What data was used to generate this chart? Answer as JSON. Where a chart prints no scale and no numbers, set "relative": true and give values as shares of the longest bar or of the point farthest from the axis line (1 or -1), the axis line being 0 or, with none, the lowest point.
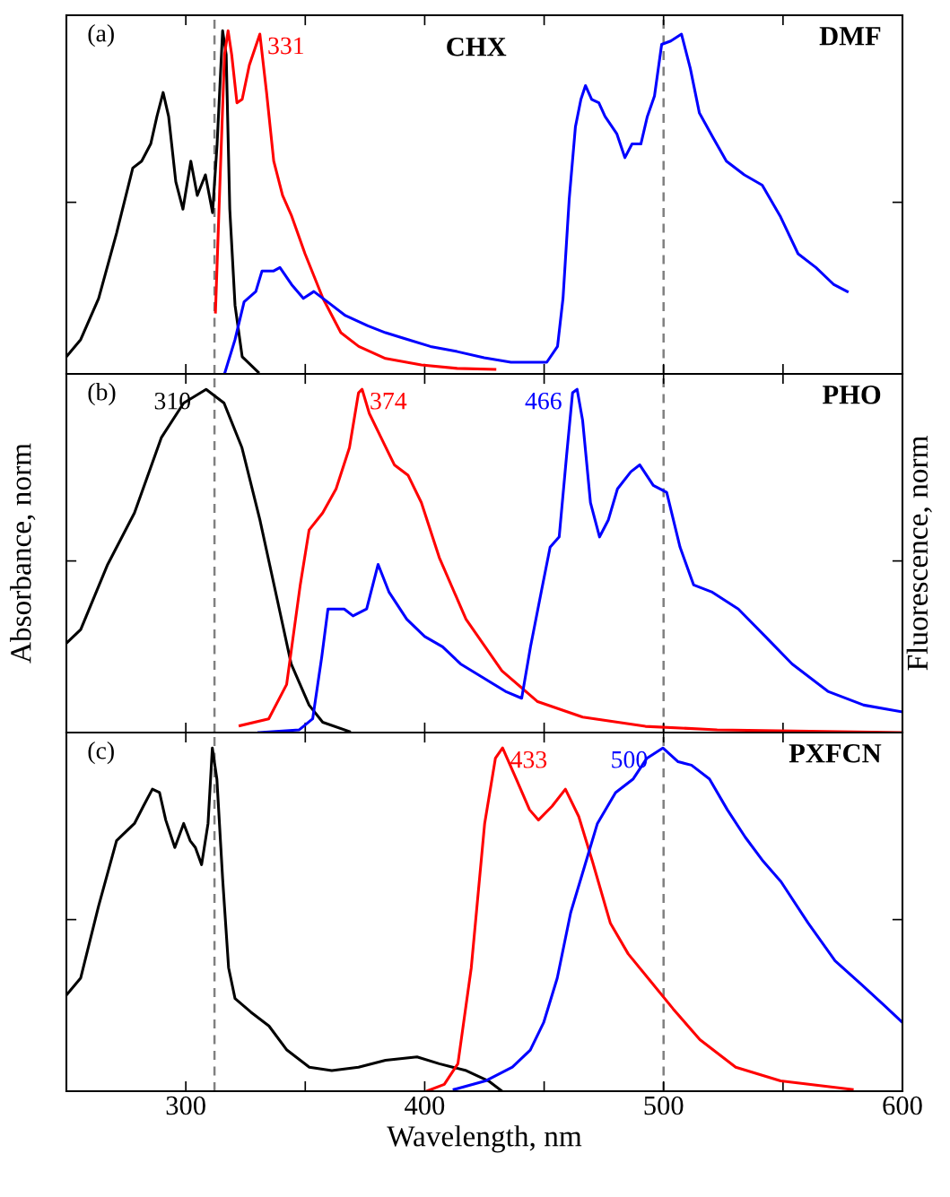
{
  "chart_data": [
    {
      "type": "line",
      "relative": true,
      "xlim": [
        250,
        600
      ],
      "xticks": [
        300,
        {
          "value": 350,
          "label": null
        },
        400,
        {
          "value": 450,
          "label": null
        },
        500,
        {
          "value": 550,
          "label": null
        },
        600
      ],
      "tick_labels": false,
      "grid": false,
      "marker": "none",
      "line_style": "solid",
      "annotations": [
        "(a)",
        "CHX",
        "DMF",
        {
          "text": "331",
          "x": 331,
          "y": 0.99
        }
      ],
      "ref_lines": [
        {
          "axis": "x",
          "value": 312,
          "color": "#808080",
          "line_style": "dashed"
        },
        {
          "axis": "x",
          "value": 500,
          "color": "#808080",
          "line_style": "dashed"
        }
      ],
      "series": [
        {
          "color": "#000000",
          "x": [
            250,
            256,
            263.5,
            271,
            277.8,
            281.5,
            285.3,
            287.9,
            290.5,
            292.8,
            295.8,
            298.8,
            302.1,
            304.8,
            308.2,
            311.2,
            313.1,
            315.4,
            316.9,
            318.4,
            320.6,
            323.6,
            330.3
          ],
          "values": [
            0.05,
            0.1,
            0.22,
            0.41,
            0.6,
            0.62,
            0.67,
            0.75,
            0.82,
            0.75,
            0.56,
            0.48,
            0.62,
            0.52,
            0.58,
            0.47,
            0.67,
            1.0,
            0.93,
            0.48,
            0.2,
            0.05,
            0.005
          ]
        },
        {
          "color": "#ff0000",
          "x": [
            312.4,
            314.3,
            316.2,
            317.7,
            319.2,
            321.4,
            323.6,
            326.6,
            331,
            333.8,
            336.8,
            340.5,
            344.3,
            349.9,
            357.4,
            364.9,
            372.4,
            383.6,
            398.6,
            413.6,
            429.4
          ],
          "values": [
            0.18,
            0.56,
            0.93,
            1.0,
            0.93,
            0.79,
            0.8,
            0.9,
            0.99,
            0.82,
            0.62,
            0.52,
            0.46,
            0.35,
            0.22,
            0.12,
            0.08,
            0.045,
            0.026,
            0.016,
            0.013
          ]
        },
        {
          "color": "#0000ff",
          "x": [
            316.2,
            320.6,
            324.4,
            329.3,
            331.9,
            336.8,
            339.4,
            344.3,
            349.2,
            353.6,
            359.3,
            366.8,
            376.2,
            383.6,
            393,
            402.4,
            413.6,
            424.9,
            436.1,
            451.1,
            455.6,
            457.9,
            460.5,
            463.1,
            465.4,
            467.3,
            469.9,
            472.9,
            475.5,
            480.4,
            483.8,
            486.8,
            490.5,
            493.2,
            496.2,
            499.2,
            503,
            507.5,
            511.2,
            515,
            520.6,
            526.3,
            533.8,
            541.3,
            548.8,
            556.3,
            563.8,
            571.3,
            576.9
          ],
          "values": [
            0,
            0.1,
            0.21,
            0.24,
            0.3,
            0.3,
            0.31,
            0.26,
            0.22,
            0.24,
            0.21,
            0.17,
            0.14,
            0.12,
            0.1,
            0.08,
            0.065,
            0.047,
            0.034,
            0.034,
            0.08,
            0.22,
            0.51,
            0.72,
            0.8,
            0.84,
            0.8,
            0.79,
            0.75,
            0.7,
            0.63,
            0.67,
            0.67,
            0.75,
            0.81,
            0.96,
            0.97,
            0.99,
            0.89,
            0.76,
            0.69,
            0.62,
            0.58,
            0.55,
            0.46,
            0.35,
            0.31,
            0.26,
            0.24
          ]
        }
      ]
    },
    {
      "type": "line",
      "relative": true,
      "xlim": [
        250,
        600
      ],
      "xticks": [
        300,
        {
          "value": 350,
          "label": null
        },
        400,
        {
          "value": 450,
          "label": null
        },
        500,
        {
          "value": 550,
          "label": null
        },
        600
      ],
      "tick_labels": false,
      "grid": false,
      "marker": "none",
      "line_style": "solid",
      "ylabel": "Absorbance, norm",
      "y2label": "Fluorescence, norm",
      "annotations": [
        "(b)",
        "PHO",
        {
          "text": "310",
          "x": 308.5,
          "y": 1.0
        },
        {
          "text": "374",
          "x": 373.8,
          "y": 1.0
        },
        {
          "text": "466",
          "x": 463.8,
          "y": 1.0
        }
      ],
      "ref_lines": [
        {
          "axis": "x",
          "value": 312,
          "color": "#808080",
          "line_style": "dashed"
        },
        {
          "axis": "x",
          "value": 500,
          "color": "#808080",
          "line_style": "dashed"
        }
      ],
      "series": [
        {
          "color": "#000000",
          "x": [
            250,
            256,
            267.3,
            278.5,
            289.8,
            299.1,
            308.5,
            316,
            323.5,
            331,
            338.5,
            344.1,
            351.6,
            357.3,
            368.5
          ],
          "values": [
            0.26,
            0.3,
            0.49,
            0.64,
            0.86,
            0.96,
            1.0,
            0.96,
            0.83,
            0.62,
            0.38,
            0.2,
            0.08,
            0.03,
            0.003
          ]
        },
        {
          "color": "#ff0000",
          "x": [
            322.7,
            334.7,
            342.2,
            347.9,
            351.6,
            357.3,
            362.9,
            368.5,
            372.3,
            373.8,
            376.8,
            381.7,
            387.3,
            393,
            398.6,
            406.1,
            417.3,
            432.3,
            447.3,
            466.1,
            492.4,
            522.4,
            600
          ],
          "values": [
            0.02,
            0.04,
            0.14,
            0.43,
            0.59,
            0.64,
            0.71,
            0.83,
            0.99,
            1.0,
            0.93,
            0.86,
            0.78,
            0.75,
            0.67,
            0.51,
            0.33,
            0.18,
            0.09,
            0.045,
            0.018,
            0.008,
            0
          ]
        },
        {
          "color": "#0000ff",
          "x": [
            330.6,
            347.5,
            353.1,
            356.9,
            359.5,
            366.3,
            370,
            375.7,
            380.5,
            385,
            392.5,
            400,
            407.5,
            415,
            424.4,
            433.8,
            440.6,
            444.3,
            448.8,
            452.5,
            456.3,
            459.3,
            461.9,
            463.8,
            466.1,
            469.4,
            473.2,
            476.9,
            480.7,
            486.3,
            490,
            495.7,
            501.3,
            506.9,
            512.6,
            520.1,
            531.3,
            542.6,
            553.8,
            568.8,
            583.8,
            600
          ],
          "values": [
            0,
            0.008,
            0.04,
            0.22,
            0.36,
            0.36,
            0.34,
            0.36,
            0.49,
            0.41,
            0.33,
            0.28,
            0.25,
            0.2,
            0.16,
            0.12,
            0.1,
            0.25,
            0.41,
            0.54,
            0.57,
            0.8,
            0.99,
            1.0,
            0.91,
            0.67,
            0.57,
            0.62,
            0.71,
            0.76,
            0.78,
            0.72,
            0.7,
            0.54,
            0.43,
            0.41,
            0.36,
            0.28,
            0.2,
            0.12,
            0.08,
            0.06
          ]
        }
      ]
    },
    {
      "type": "line",
      "relative": true,
      "xlim": [
        250,
        600
      ],
      "xticks": [
        300,
        {
          "value": 350,
          "label": null
        },
        400,
        {
          "value": 450,
          "label": null
        },
        500,
        {
          "value": 550,
          "label": null
        },
        600
      ],
      "tick_labels": "x",
      "grid": false,
      "marker": "none",
      "line_style": "solid",
      "xlabel": "Wavelength, nm",
      "annotations": [
        "(c)",
        "PXFCN",
        {
          "text": "433",
          "x": 432.6,
          "y": 1.0
        },
        {
          "text": "500",
          "x": 499.7,
          "y": 1.0
        }
      ],
      "ref_lines": [
        {
          "axis": "x",
          "value": 312,
          "color": "#808080",
          "line_style": "dashed"
        },
        {
          "axis": "x",
          "value": 500,
          "color": "#808080",
          "line_style": "dashed"
        }
      ],
      "series": [
        {
          "color": "#000000",
          "x": [
            250,
            256,
            263.5,
            271,
            274,
            278.5,
            282.2,
            286,
            289,
            291.6,
            295.4,
            299.1,
            301.8,
            304,
            306.6,
            309.3,
            311.1,
            313,
            315.4,
            317.9,
            320.6,
            327.3,
            334.8,
            342.3,
            351.7,
            361.1,
            372.3,
            383.6,
            396.8,
            406.1,
            417.4,
            426.7,
            432.4
          ],
          "values": [
            0.28,
            0.33,
            0.54,
            0.73,
            0.75,
            0.78,
            0.83,
            0.88,
            0.87,
            0.79,
            0.71,
            0.78,
            0.73,
            0.71,
            0.66,
            0.78,
            1.0,
            0.91,
            0.62,
            0.36,
            0.27,
            0.23,
            0.19,
            0.12,
            0.07,
            0.06,
            0.07,
            0.09,
            0.1,
            0.08,
            0.06,
            0.03,
            0
          ]
        },
        {
          "color": "#ff0000",
          "x": [
            400.8,
            408.2,
            413.9,
            419.5,
            425.1,
            429.6,
            432.6,
            438.3,
            443.9,
            447.6,
            453.3,
            458.9,
            464.5,
            470.2,
            477.7,
            485.2,
            494.6,
            504,
            515.2,
            530.2,
            549,
            579
          ],
          "values": [
            0,
            0.02,
            0.08,
            0.36,
            0.78,
            0.97,
            1.0,
            0.91,
            0.82,
            0.79,
            0.83,
            0.88,
            0.8,
            0.67,
            0.49,
            0.4,
            0.32,
            0.24,
            0.15,
            0.07,
            0.03,
            0.005
          ]
        },
        {
          "color": "#0000ff",
          "x": [
            412.3,
            425.4,
            436.7,
            444.2,
            449.8,
            455.5,
            461.1,
            466.7,
            472.3,
            479.9,
            487.3,
            493,
            499.7,
            506.1,
            511.7,
            519.2,
            526.7,
            534.2,
            541.7,
            549.2,
            560.5,
            571.8,
            583,
            592.4,
            600
          ],
          "values": [
            0.005,
            0.03,
            0.07,
            0.12,
            0.2,
            0.33,
            0.52,
            0.65,
            0.78,
            0.87,
            0.91,
            0.97,
            1.0,
            0.96,
            0.95,
            0.91,
            0.82,
            0.74,
            0.67,
            0.61,
            0.49,
            0.38,
            0.31,
            0.25,
            0.2
          ]
        }
      ]
    }
  ]
}
